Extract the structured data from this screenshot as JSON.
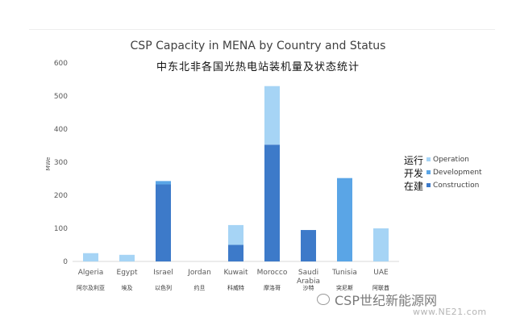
{
  "chart_data": {
    "type": "bar",
    "stacked": true,
    "title": "CSP Capacity in MENA by Country and Status",
    "subtitle": "中东北非各国光热电站装机量及状态统计",
    "ylabel": "MWe",
    "ylim": [
      0,
      600
    ],
    "yticks": [
      "0",
      "100",
      "200",
      "300",
      "400",
      "500",
      "600"
    ],
    "grid": false,
    "legend_position": "right",
    "categories": [
      "Algeria",
      "Egypt",
      "Israel",
      "Jordan",
      "Kuwait",
      "Morocco",
      "Saudi Arabia",
      "Tunisia",
      "UAE"
    ],
    "categories_cn": [
      "阿尔及利亚",
      "埃及",
      "以色列",
      "约旦",
      "科威特",
      "摩洛哥",
      "沙特",
      "突尼斯",
      "阿联酋"
    ],
    "series": [
      {
        "name": "Construction",
        "name_cn": "在建",
        "color": "#3d7ac9",
        "values": [
          0,
          0,
          233,
          0,
          50,
          353,
          95,
          0,
          0
        ]
      },
      {
        "name": "Development",
        "name_cn": "开发",
        "color": "#5aa5e6",
        "values": [
          0,
          0,
          10,
          0,
          0,
          0,
          0,
          252,
          0
        ]
      },
      {
        "name": "Operation",
        "name_cn": "运行",
        "color": "#a6d4f5",
        "values": [
          25,
          20,
          0,
          0,
          60,
          177,
          0,
          0,
          100
        ]
      }
    ]
  },
  "watermark": {
    "text": "CSP世纪新能源网",
    "url": "www.NE21.com",
    "icon": "wechat-icon"
  }
}
